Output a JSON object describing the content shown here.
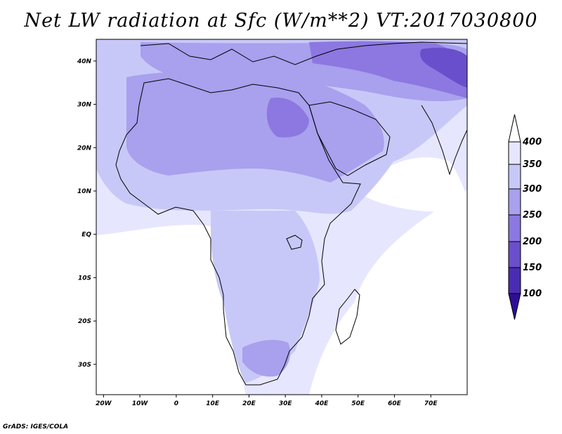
{
  "title": "Net LW radiation at Sfc (W/m**2) VT:2017030800",
  "footer": "GrADS: IGES/COLA",
  "map": {
    "lon_range": [
      -22,
      80
    ],
    "lat_range": [
      -37,
      45
    ],
    "x_ticks": [
      {
        "value": -20,
        "label": "20W"
      },
      {
        "value": -10,
        "label": "10W"
      },
      {
        "value": 0,
        "label": "0"
      },
      {
        "value": 10,
        "label": "10E"
      },
      {
        "value": 20,
        "label": "20E"
      },
      {
        "value": 30,
        "label": "30E"
      },
      {
        "value": 40,
        "label": "40E"
      },
      {
        "value": 50,
        "label": "50E"
      },
      {
        "value": 60,
        "label": "60E"
      },
      {
        "value": 70,
        "label": "70E"
      }
    ],
    "y_ticks": [
      {
        "value": 40,
        "label": "40N"
      },
      {
        "value": 30,
        "label": "30N"
      },
      {
        "value": 20,
        "label": "20N"
      },
      {
        "value": 10,
        "label": "10N"
      },
      {
        "value": 0,
        "label": "EQ"
      },
      {
        "value": -10,
        "label": "10S"
      },
      {
        "value": -20,
        "label": "20S"
      },
      {
        "value": -30,
        "label": "30S"
      }
    ]
  },
  "colorbar": {
    "levels": [
      "400",
      "350",
      "300",
      "250",
      "200",
      "150",
      "100"
    ],
    "colors": {
      "above_400": "#ffffff",
      "350_400": "#e6e6ff",
      "300_350": "#c8c8f8",
      "250_300": "#a9a0ee",
      "200_250": "#8c78e0",
      "150_200": "#6a4fcc",
      "100_150": "#4a2cb4",
      "below_100": "#2e0e96"
    }
  }
}
